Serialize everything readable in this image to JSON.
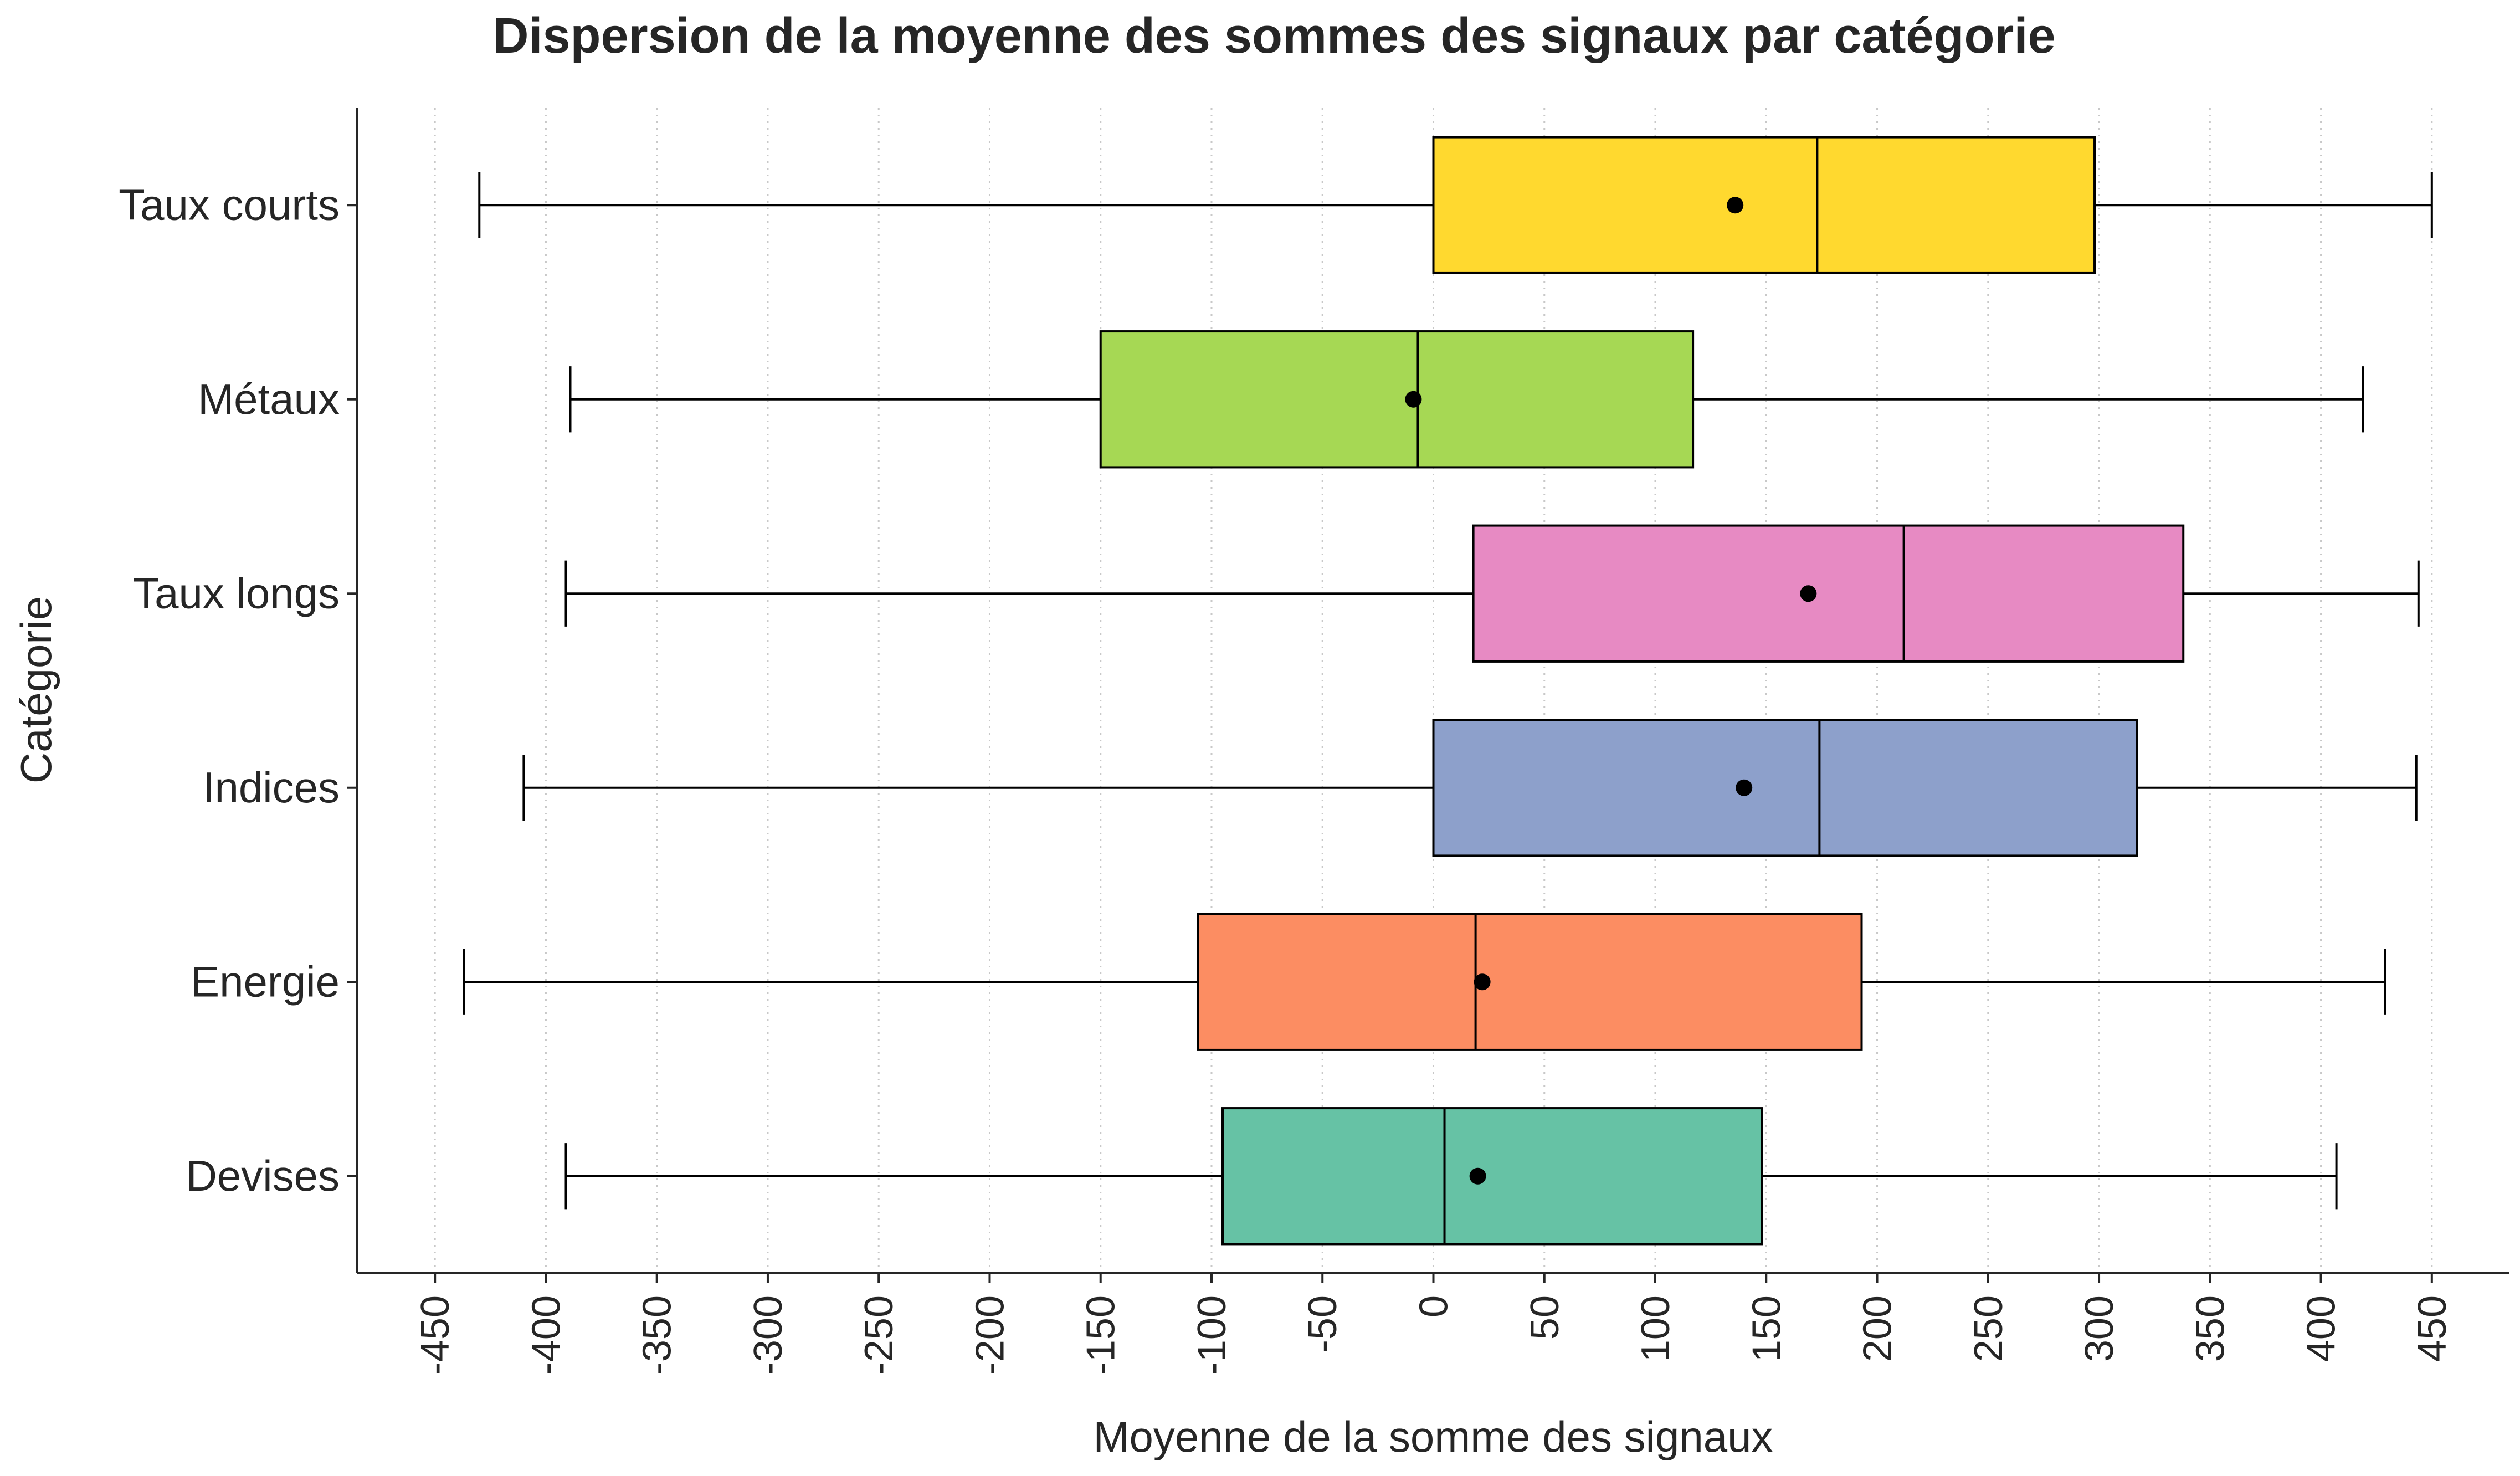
{
  "chart_data": {
    "type": "boxplot",
    "orientation": "horizontal",
    "title": "Dispersion de la moyenne des sommes des signaux par catégorie",
    "xlabel": "Moyenne de la somme des signaux",
    "ylabel": "Catégorie",
    "xlim": [
      -485,
      485
    ],
    "xticks": [
      -450,
      -400,
      -350,
      -300,
      -250,
      -200,
      -150,
      -100,
      -50,
      0,
      50,
      100,
      150,
      200,
      250,
      300,
      350,
      400,
      450
    ],
    "xtick_labels": [
      "-450",
      "-400",
      "-350",
      "-300",
      "-250",
      "-200",
      "-150",
      "-100",
      "-50",
      "0",
      "50",
      "100",
      "150",
      "200",
      "250",
      "300",
      "350",
      "400",
      "450"
    ],
    "grid": "x-dotted",
    "categories": [
      {
        "name": "Taux courts",
        "min": -430,
        "q1": 0,
        "median": 173,
        "q3": 298,
        "max": 450,
        "mean": 136,
        "color": "#ffd92f"
      },
      {
        "name": "Métaux",
        "min": -389,
        "q1": -150,
        "median": -7,
        "q3": 117,
        "max": 419,
        "mean": -9,
        "color": "#a6d854"
      },
      {
        "name": "Taux longs",
        "min": -391,
        "q1": 18,
        "median": 212,
        "q3": 338,
        "max": 444,
        "mean": 169,
        "color": "#e78ac3"
      },
      {
        "name": "Indices",
        "min": -410,
        "q1": 0,
        "median": 174,
        "q3": 317,
        "max": 443,
        "mean": 140,
        "color": "#8da0cb"
      },
      {
        "name": "Energie",
        "min": -437,
        "q1": -106,
        "median": 19,
        "q3": 193,
        "max": 429,
        "mean": 22,
        "color": "#fc8d62"
      },
      {
        "name": "Devises",
        "min": -391,
        "q1": -95,
        "median": 5,
        "q3": 148,
        "max": 407,
        "mean": 20,
        "color": "#66c2a5"
      }
    ]
  }
}
